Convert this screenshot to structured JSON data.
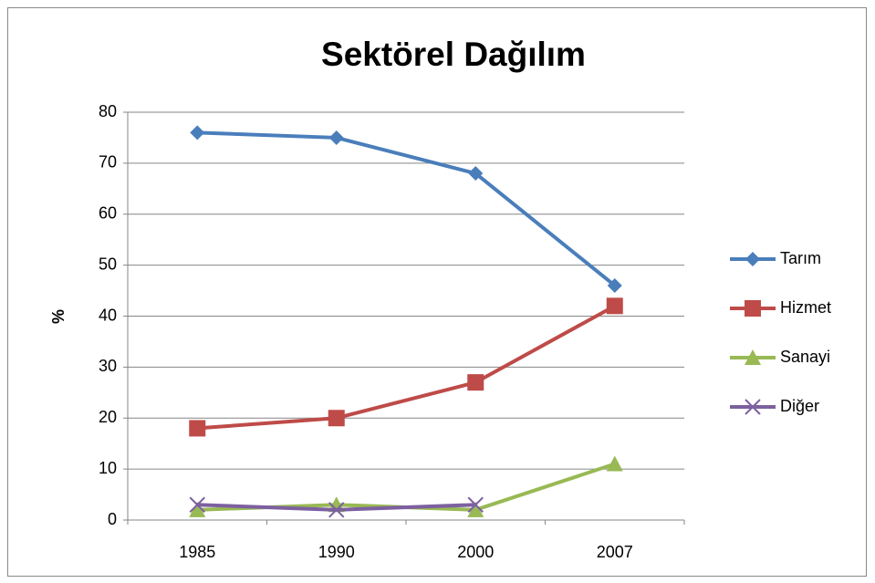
{
  "chart_data": {
    "type": "line",
    "title": "Sektörel Dağılım",
    "y_label": "%",
    "categories": [
      "1985",
      "1990",
      "2000",
      "2007"
    ],
    "series": [
      {
        "name": "Tarım",
        "color": "#4a7ebb",
        "marker": "diamond",
        "values": [
          76,
          75,
          68,
          46
        ]
      },
      {
        "name": "Hizmet",
        "color": "#be4b48",
        "marker": "square",
        "values": [
          18,
          20,
          27,
          42
        ]
      },
      {
        "name": "Sanayi",
        "color": "#98b954",
        "marker": "triangle",
        "values": [
          2,
          3,
          2,
          11
        ]
      },
      {
        "name": "Diğer",
        "color": "#7d60a0",
        "marker": "x",
        "values": [
          3,
          2,
          3,
          null
        ]
      }
    ],
    "ylim": [
      0,
      80
    ],
    "yticks": [
      0,
      10,
      20,
      30,
      40,
      50,
      60,
      70,
      80
    ],
    "grid": true,
    "legend": "right"
  }
}
